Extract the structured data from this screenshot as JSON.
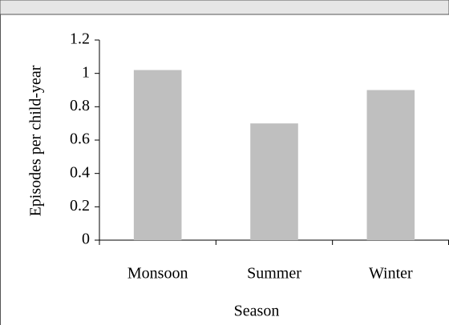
{
  "chart_data": {
    "type": "bar",
    "categories": [
      "Monsoon",
      "Summer",
      "Winter"
    ],
    "values": [
      1.02,
      0.7,
      0.9
    ],
    "color": "#bfbfbf",
    "ylim": [
      0,
      1.2
    ],
    "yticks": [
      0,
      0.2,
      0.4,
      0.6,
      0.8,
      1,
      1.2
    ],
    "x_label": "Season",
    "y_label": "Episodes per child-year",
    "grid": false
  }
}
